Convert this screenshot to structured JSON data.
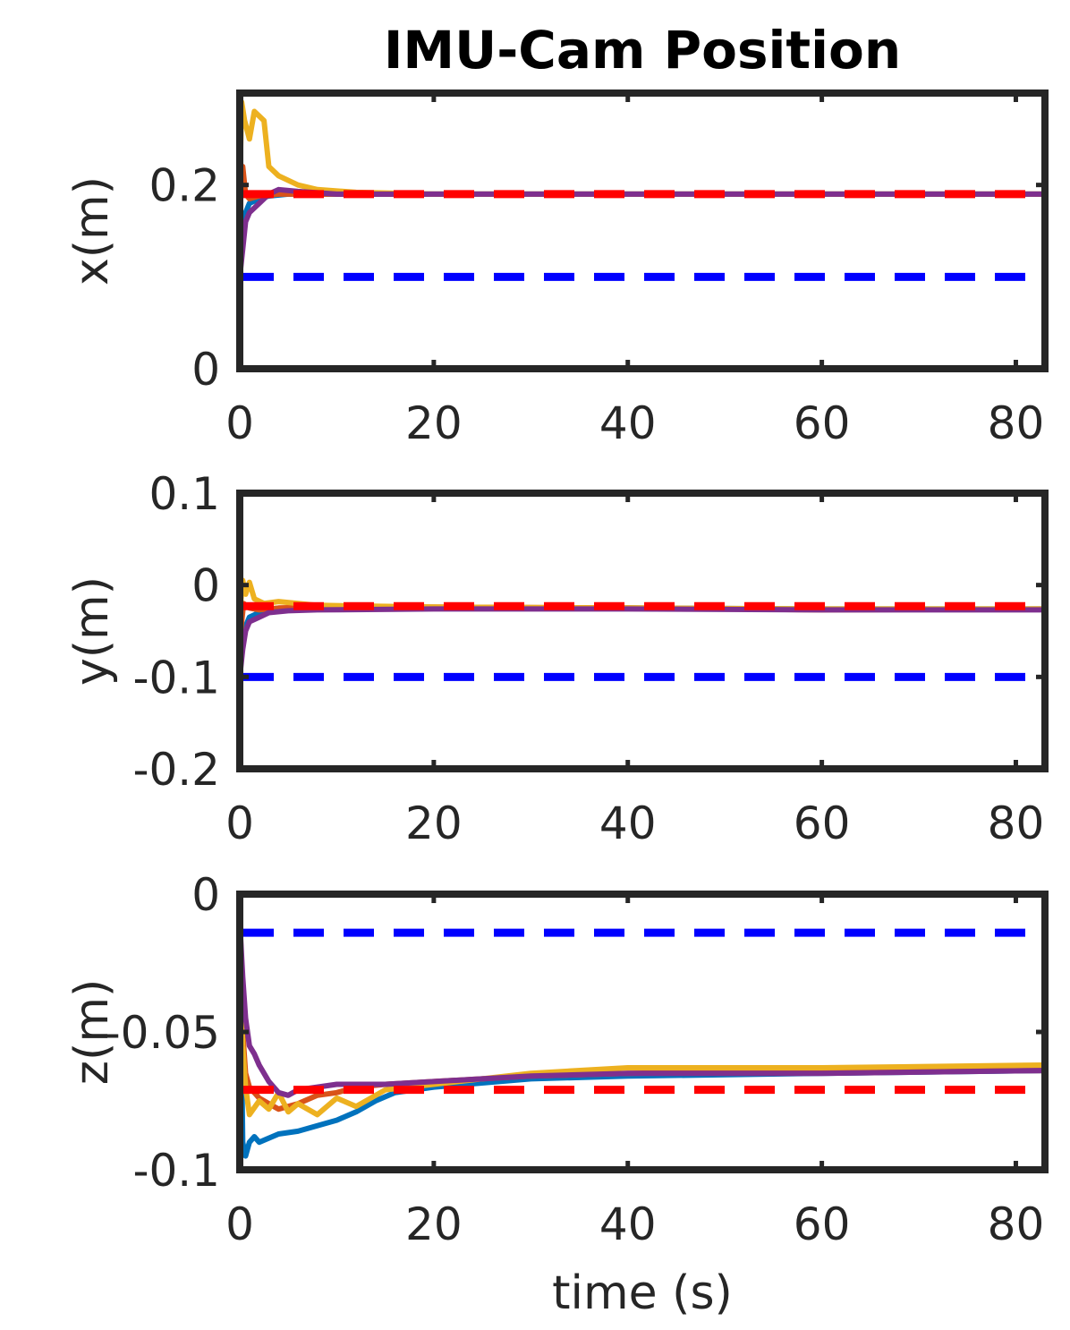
{
  "chart_data": {
    "title": "IMU-Cam Position",
    "type": "line",
    "colors": {
      "run1": "#0072BD",
      "run2": "#D95319",
      "run3": "#EDB120",
      "run4": "#7E2F8E",
      "reference_red": "#FF0000",
      "reference_blue": "#0000FF"
    },
    "subplots": [
      {
        "ylabel": "x(m)",
        "xlabel": "",
        "xlim": [
          0,
          83
        ],
        "ylim": [
          0,
          0.3
        ],
        "xticks": [
          0,
          20,
          40,
          60,
          80
        ],
        "xtick_labels": [
          "0",
          "20",
          "40",
          "60",
          "80"
        ],
        "yticks": [
          0,
          0.2
        ],
        "ytick_labels": [
          "0",
          "0.2"
        ],
        "reference_lines": [
          {
            "color": "#FF0000",
            "value": 0.19
          },
          {
            "color": "#0000FF",
            "value": 0.1
          }
        ],
        "series": [
          {
            "color": "#0072BD",
            "x": [
              0,
              0.3,
              0.6,
              1,
              2,
              3,
              5,
              8,
              12,
              20,
              40,
              60,
              83
            ],
            "y": [
              0.12,
              0.15,
              0.17,
              0.18,
              0.185,
              0.188,
              0.19,
              0.19,
              0.19,
              0.19,
              0.19,
              0.19,
              0.19
            ]
          },
          {
            "color": "#D95319",
            "x": [
              0,
              0.3,
              0.6,
              1,
              2,
              4,
              8,
              20,
              40,
              60,
              83
            ],
            "y": [
              0.17,
              0.22,
              0.19,
              0.185,
              0.188,
              0.19,
              0.19,
              0.19,
              0.19,
              0.19,
              0.19
            ]
          },
          {
            "color": "#EDB120",
            "x": [
              0,
              0.2,
              0.5,
              1,
              1.5,
              2.5,
              3,
              4,
              6,
              8,
              12,
              20,
              40,
              60,
              83
            ],
            "y": [
              0.2,
              0.29,
              0.27,
              0.25,
              0.28,
              0.27,
              0.22,
              0.21,
              0.2,
              0.195,
              0.192,
              0.19,
              0.19,
              0.19,
              0.19
            ]
          },
          {
            "color": "#7E2F8E",
            "x": [
              0,
              0.3,
              0.6,
              1,
              2,
              3,
              4,
              6,
              10,
              20,
              40,
              60,
              83
            ],
            "y": [
              0.1,
              0.13,
              0.16,
              0.17,
              0.18,
              0.19,
              0.195,
              0.193,
              0.19,
              0.19,
              0.19,
              0.19,
              0.19
            ]
          }
        ]
      },
      {
        "ylabel": "y(m)",
        "xlabel": "",
        "xlim": [
          0,
          83
        ],
        "ylim": [
          -0.2,
          0.1
        ],
        "xticks": [
          0,
          20,
          40,
          60,
          80
        ],
        "xtick_labels": [
          "0",
          "20",
          "40",
          "60",
          "80"
        ],
        "yticks": [
          -0.2,
          -0.1,
          0,
          0.1
        ],
        "ytick_labels": [
          "-0.2",
          "-0.1",
          "0",
          "0.1"
        ],
        "reference_lines": [
          {
            "color": "#FF0000",
            "value": -0.023
          },
          {
            "color": "#0000FF",
            "value": -0.1
          }
        ],
        "series": [
          {
            "color": "#0072BD",
            "x": [
              0,
              0.4,
              1,
              2,
              4,
              8,
              20,
              40,
              60,
              83
            ],
            "y": [
              -0.09,
              -0.05,
              -0.035,
              -0.03,
              -0.027,
              -0.026,
              -0.025,
              -0.025,
              -0.026,
              -0.026
            ]
          },
          {
            "color": "#D95319",
            "x": [
              0,
              0.4,
              1,
              2,
              4,
              8,
              20,
              40,
              60,
              83
            ],
            "y": [
              -0.06,
              -0.02,
              -0.025,
              -0.027,
              -0.025,
              -0.024,
              -0.024,
              -0.025,
              -0.027,
              -0.026
            ]
          },
          {
            "color": "#EDB120",
            "x": [
              0,
              0.3,
              0.6,
              1,
              1.5,
              2.5,
              4,
              8,
              20,
              40,
              60,
              83
            ],
            "y": [
              -0.03,
              0.005,
              -0.01,
              0.003,
              -0.015,
              -0.02,
              -0.018,
              -0.022,
              -0.024,
              -0.025,
              -0.026,
              -0.026
            ]
          },
          {
            "color": "#7E2F8E",
            "x": [
              0,
              0.3,
              0.6,
              1,
              2,
              3,
              5,
              8,
              20,
              40,
              60,
              83
            ],
            "y": [
              -0.1,
              -0.07,
              -0.05,
              -0.04,
              -0.035,
              -0.03,
              -0.028,
              -0.027,
              -0.026,
              -0.026,
              -0.027,
              -0.027
            ]
          }
        ]
      },
      {
        "ylabel": "z(m)",
        "xlabel": "time (s)",
        "xlim": [
          0,
          83
        ],
        "ylim": [
          -0.1,
          0
        ],
        "xticks": [
          0,
          20,
          40,
          60,
          80
        ],
        "xtick_labels": [
          "0",
          "20",
          "40",
          "60",
          "80"
        ],
        "yticks": [
          -0.1,
          -0.05,
          0
        ],
        "ytick_labels": [
          "-0.1",
          "-0.05",
          "0"
        ],
        "reference_lines": [
          {
            "color": "#FF0000",
            "value": -0.071
          },
          {
            "color": "#0000FF",
            "value": -0.014
          }
        ],
        "series": [
          {
            "color": "#0072BD",
            "x": [
              0,
              0.3,
              0.6,
              1,
              1.5,
              2,
              4,
              6,
              8,
              10,
              12,
              14,
              16,
              20,
              30,
              40,
              60,
              83
            ],
            "y": [
              -0.001,
              -0.09,
              -0.095,
              -0.09,
              -0.088,
              -0.09,
              -0.087,
              -0.086,
              -0.084,
              -0.082,
              -0.079,
              -0.075,
              -0.072,
              -0.07,
              -0.067,
              -0.066,
              -0.065,
              -0.064
            ]
          },
          {
            "color": "#D95319",
            "x": [
              0,
              0.3,
              0.6,
              1,
              2,
              3,
              4,
              6,
              8,
              10,
              12,
              15,
              20,
              30,
              40,
              60,
              83
            ],
            "y": [
              -0.003,
              -0.05,
              -0.065,
              -0.07,
              -0.074,
              -0.076,
              -0.078,
              -0.076,
              -0.073,
              -0.072,
              -0.07,
              -0.069,
              -0.068,
              -0.066,
              -0.065,
              -0.064,
              -0.064
            ]
          },
          {
            "color": "#EDB120",
            "x": [
              0,
              0.3,
              0.6,
              1,
              2,
              3,
              4,
              5,
              6,
              8,
              10,
              12,
              15,
              20,
              30,
              40,
              60,
              83
            ],
            "y": [
              -0.02,
              -0.055,
              -0.07,
              -0.08,
              -0.075,
              -0.078,
              -0.072,
              -0.079,
              -0.076,
              -0.08,
              -0.074,
              -0.077,
              -0.071,
              -0.069,
              -0.065,
              -0.063,
              -0.063,
              -0.062
            ]
          },
          {
            "color": "#7E2F8E",
            "x": [
              0,
              0.3,
              0.6,
              1,
              1.5,
              2,
              3,
              4,
              5,
              6,
              8,
              10,
              15,
              20,
              30,
              40,
              60,
              83
            ],
            "y": [
              -0.01,
              -0.03,
              -0.045,
              -0.055,
              -0.058,
              -0.062,
              -0.068,
              -0.072,
              -0.073,
              -0.071,
              -0.07,
              -0.069,
              -0.069,
              -0.068,
              -0.066,
              -0.065,
              -0.065,
              -0.064
            ]
          }
        ]
      }
    ]
  }
}
